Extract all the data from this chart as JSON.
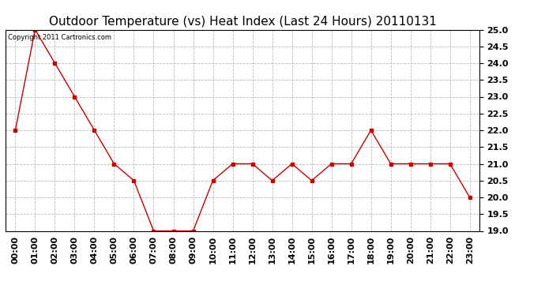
{
  "title": "Outdoor Temperature (vs) Heat Index (Last 24 Hours) 20110131",
  "copyright_text": "Copyright 2011 Cartronics.com",
  "hours": [
    "00:00",
    "01:00",
    "02:00",
    "03:00",
    "04:00",
    "05:00",
    "06:00",
    "07:00",
    "08:00",
    "09:00",
    "10:00",
    "11:00",
    "12:00",
    "13:00",
    "14:00",
    "15:00",
    "16:00",
    "17:00",
    "18:00",
    "19:00",
    "20:00",
    "21:00",
    "22:00",
    "23:00"
  ],
  "values": [
    22.0,
    25.0,
    24.0,
    23.0,
    22.0,
    21.0,
    20.5,
    19.0,
    19.0,
    19.0,
    20.5,
    21.0,
    21.0,
    20.5,
    21.0,
    20.5,
    21.0,
    21.0,
    22.0,
    21.0,
    21.0,
    21.0,
    21.0,
    20.0
  ],
  "line_color": "#cc0000",
  "marker": "s",
  "marker_size": 2.5,
  "ylim": [
    19.0,
    25.0
  ],
  "ytick_step": 0.5,
  "background_color": "#ffffff",
  "grid_color": "#bbbbbb",
  "title_fontsize": 11,
  "copyright_fontsize": 6,
  "tick_fontsize": 8
}
